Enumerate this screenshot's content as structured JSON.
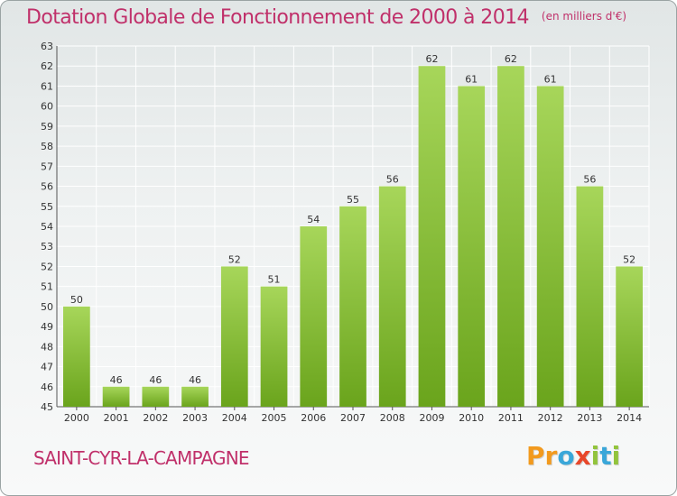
{
  "title": "Dotation Globale de Fonctionnement de 2000 à 2014",
  "subtitle": "(en milliers d'€)",
  "commune": "SAINT-CYR-LA-CAMPAGNE",
  "brand": {
    "letters": [
      "P",
      "r",
      "o",
      "x",
      "i",
      "t",
      "i"
    ],
    "colors": [
      "#f29a1e",
      "#f29a1e",
      "#3aa7d9",
      "#e8472a",
      "#92c43c",
      "#3aa7d9",
      "#92c43c"
    ]
  },
  "colors": {
    "title": "#c0306a",
    "bar_light": "#a7d65a",
    "bar_dark": "#6aa41c",
    "grid": "#ffffff"
  },
  "chart_data": {
    "type": "bar",
    "categories": [
      "2000",
      "2001",
      "2002",
      "2003",
      "2004",
      "2005",
      "2006",
      "2007",
      "2008",
      "2009",
      "2010",
      "2011",
      "2012",
      "2013",
      "2014"
    ],
    "values": [
      50,
      46,
      46,
      46,
      52,
      51,
      54,
      55,
      56,
      62,
      61,
      62,
      61,
      56,
      52
    ],
    "ylim": [
      45,
      63
    ],
    "yticks": [
      45,
      46,
      47,
      48,
      49,
      50,
      51,
      52,
      53,
      54,
      55,
      56,
      57,
      58,
      59,
      60,
      61,
      62,
      63
    ],
    "grid": true,
    "data_labels": true
  }
}
